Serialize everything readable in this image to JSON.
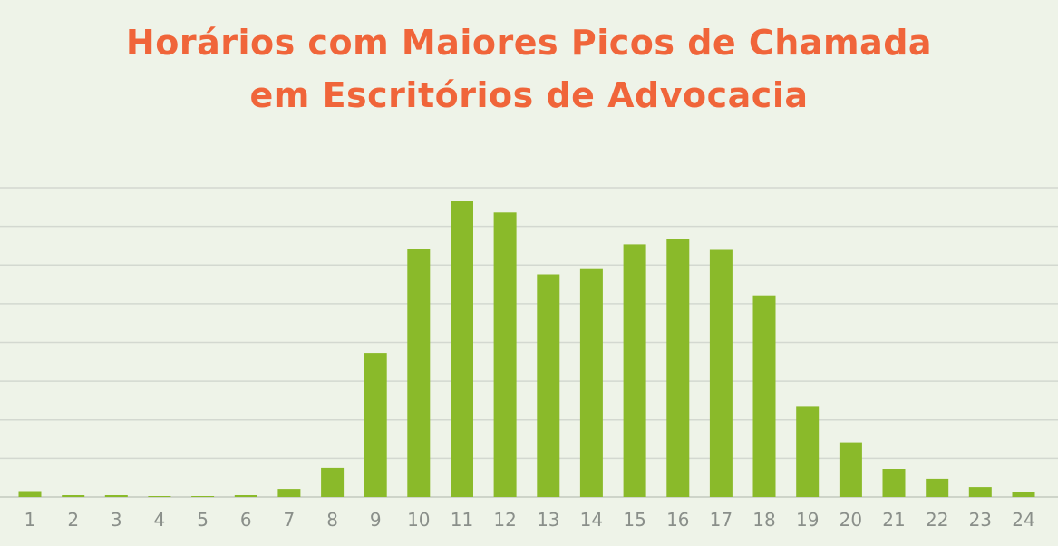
{
  "chart_data": {
    "type": "bar",
    "title_lines": [
      "Horários com Maiores Picos de Chamada",
      "em Escritórios de Advocacia"
    ],
    "xlabel": "",
    "ylabel": "",
    "categories": [
      "1",
      "2",
      "3",
      "4",
      "5",
      "6",
      "7",
      "8",
      "9",
      "10",
      "11",
      "12",
      "13",
      "14",
      "15",
      "16",
      "17",
      "18",
      "19",
      "20",
      "21",
      "22",
      "23",
      "24"
    ],
    "values": [
      1.9,
      0.6,
      0.6,
      0.3,
      0.3,
      0.6,
      2.6,
      9.4,
      46.6,
      80.2,
      95.6,
      92.0,
      72.0,
      73.7,
      81.7,
      83.5,
      79.9,
      65.2,
      29.2,
      17.7,
      9.1,
      5.9,
      3.2,
      1.5
    ],
    "ylim": [
      0,
      100
    ],
    "grid": true,
    "legend": "none",
    "colors": {
      "bar": "#8aba2a",
      "title": "#f0653a",
      "grid": "#d3d8d0",
      "baseline": "#aeb5aa",
      "tick_label": "#8a8f8a",
      "background": "#eef3e8"
    }
  }
}
